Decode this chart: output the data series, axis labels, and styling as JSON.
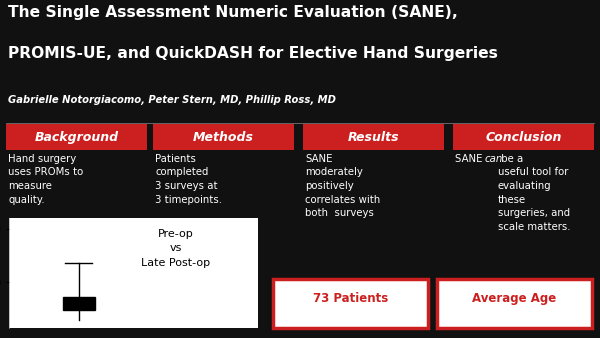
{
  "bg_color": "#111111",
  "title_line1": "The Single Assessment Numeric Evaluation (SANE),",
  "title_line2": "PROMIS-UE, and QuickDASH for Elective Hand Surgeries",
  "authors": "Gabrielle Notorgiacomo, Peter Stern, MD, Phillip Ross, MD",
  "section_headers": [
    "Background",
    "Methods",
    "Results",
    "Conclusion"
  ],
  "section_header_color": "#cc2020",
  "section_texts_plain": [
    "Hand surgery\nuses PROMs to\nmeasure\nquality.",
    "Patients\ncompleted\n3 surveys at\n3 timepoints.",
    "SANE\nmoderately\npositively\ncorrelates with\nboth  surveys",
    ""
  ],
  "conclusion_parts": [
    "SANE ",
    "can",
    " be a\nuseful tool for\nevaluating\nthese\nsurgeries, and\nscale matters."
  ],
  "box_label1": "73 Patients",
  "box_label2": "Average Age",
  "plot_title_lines": [
    "Pre-op",
    "vs",
    "Late Post-op"
  ],
  "red_color": "#cc2020",
  "white_color": "#ffffff",
  "black_color": "#000000"
}
